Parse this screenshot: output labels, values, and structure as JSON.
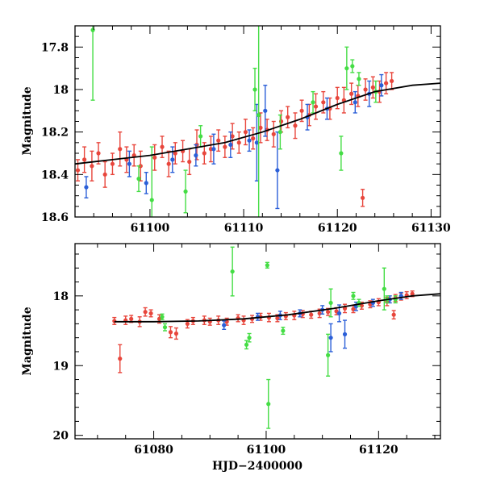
{
  "chart_data": [
    {
      "type": "scatter",
      "panel": "top",
      "title": "",
      "xlabel": "",
      "ylabel": "Magnitude",
      "xlim": [
        61092,
        61131
      ],
      "ylim": [
        18.6,
        17.7
      ],
      "y_inverted": true,
      "xticks": [
        61100,
        61110,
        61120,
        61130
      ],
      "xtick_labels": [
        "61100",
        "61110",
        "61120",
        "61130"
      ],
      "yticks": [
        17.8,
        18,
        18.2,
        18.4,
        18.6
      ],
      "ytick_labels": [
        "17.8",
        "18",
        "18.2",
        "18.4",
        "18.6"
      ],
      "model_curve": {
        "x": [
          61092,
          61096,
          61100,
          61104,
          61108,
          61112,
          61116,
          61120,
          61124,
          61128,
          61131
        ],
        "y": [
          18.35,
          18.33,
          18.31,
          18.28,
          18.25,
          18.2,
          18.14,
          18.07,
          18.01,
          17.98,
          17.97
        ]
      },
      "series": [
        {
          "name": "red",
          "color": "#e8463c",
          "x": [
            61092.3,
            61093.0,
            61093.8,
            61094.5,
            61095.2,
            61096.0,
            61096.8,
            61097.5,
            61098.3,
            61099.0,
            61100.5,
            61101.3,
            61102.0,
            61102.7,
            61103.5,
            61104.2,
            61105.0,
            61105.8,
            61106.5,
            61107.3,
            61108.0,
            61108.8,
            61109.5,
            61110.2,
            61111.0,
            61111.8,
            61112.5,
            61113.2,
            61114.0,
            61114.7,
            61115.5,
            61116.2,
            61117.0,
            61117.7,
            61118.5,
            61119.2,
            61120.0,
            61120.7,
            61121.5,
            61122.2,
            61122.7,
            61123.0,
            61123.8,
            61124.5,
            61125.2,
            61125.8
          ],
          "y": [
            18.38,
            18.33,
            18.36,
            18.3,
            18.4,
            18.35,
            18.28,
            18.33,
            18.31,
            18.36,
            18.32,
            18.27,
            18.35,
            18.3,
            18.29,
            18.34,
            18.26,
            18.3,
            18.28,
            18.24,
            18.27,
            18.22,
            18.25,
            18.2,
            18.23,
            18.18,
            18.19,
            18.21,
            18.15,
            18.13,
            18.17,
            18.1,
            18.12,
            18.08,
            18.06,
            18.09,
            18.04,
            18.05,
            18.02,
            18.03,
            18.51,
            18.0,
            17.99,
            18.01,
            17.97,
            17.96
          ],
          "err": [
            0.05,
            0.06,
            0.07,
            0.05,
            0.06,
            0.05,
            0.08,
            0.06,
            0.05,
            0.07,
            0.06,
            0.05,
            0.06,
            0.05,
            0.05,
            0.06,
            0.07,
            0.05,
            0.06,
            0.05,
            0.05,
            0.06,
            0.05,
            0.06,
            0.05,
            0.07,
            0.05,
            0.06,
            0.05,
            0.05,
            0.06,
            0.05,
            0.05,
            0.06,
            0.05,
            0.05,
            0.05,
            0.06,
            0.05,
            0.05,
            0.04,
            0.05,
            0.05,
            0.05,
            0.05,
            0.04
          ]
        },
        {
          "name": "blue",
          "color": "#2b5fd8",
          "x": [
            61093.2,
            61097.8,
            61099.6,
            61102.4,
            61104.9,
            61106.8,
            61108.6,
            61110.6,
            61111.4,
            61112.3,
            61113.6,
            61116.8,
            61118.9,
            61121.9,
            61123.4,
            61124.7
          ],
          "y": [
            18.46,
            18.35,
            18.44,
            18.33,
            18.31,
            18.28,
            18.26,
            18.24,
            18.25,
            18.1,
            18.38,
            18.13,
            18.09,
            18.06,
            18.02,
            17.98
          ],
          "err": [
            0.05,
            0.06,
            0.05,
            0.06,
            0.05,
            0.07,
            0.06,
            0.05,
            0.18,
            0.12,
            0.18,
            0.06,
            0.05,
            0.05,
            0.06,
            0.05
          ]
        },
        {
          "name": "green",
          "color": "#44dd44",
          "x": [
            61093.9,
            61098.8,
            61100.2,
            61103.8,
            61105.4,
            61111.2,
            61111.6,
            61113.9,
            61117.4,
            61120.4,
            61121.0,
            61121.6,
            61122.3,
            61124.1
          ],
          "y": [
            17.72,
            18.42,
            18.52,
            18.48,
            18.22,
            18.0,
            18.12,
            18.2,
            18.06,
            18.3,
            17.9,
            17.89,
            17.95,
            18.01
          ],
          "err": [
            0.33,
            0.06,
            0.25,
            0.1,
            0.05,
            0.1,
            0.55,
            0.08,
            0.05,
            0.08,
            0.1,
            0.03,
            0.03,
            0.05
          ]
        }
      ]
    },
    {
      "type": "scatter",
      "panel": "bottom",
      "title": "",
      "xlabel": "HJD−2400000",
      "ylabel": "Magnitude",
      "xlim": [
        61066,
        61131
      ],
      "ylim": [
        20.05,
        17.25
      ],
      "y_inverted": true,
      "xticks": [
        61080,
        61100,
        61120
      ],
      "xtick_labels": [
        "61080",
        "61100",
        "61120"
      ],
      "yticks": [
        18,
        19,
        20
      ],
      "ytick_labels": [
        "18",
        "19",
        "20"
      ],
      "model_curve": {
        "x": [
          61073,
          61080,
          61088,
          61096,
          61104,
          61112,
          61120,
          61126,
          61131
        ],
        "y": [
          18.37,
          18.37,
          18.36,
          18.33,
          18.27,
          18.18,
          18.07,
          18.0,
          17.97
        ]
      },
      "series": [
        {
          "name": "red",
          "color": "#e8463c",
          "x": [
            61073.0,
            61074.0,
            61075.0,
            61076.0,
            61077.5,
            61078.5,
            61079.5,
            61081.0,
            61083.0,
            61084.0,
            61086.0,
            61087.0,
            61089.0,
            61090.0,
            61091.5,
            61093.0,
            61095.0,
            61096.0,
            61097.5,
            61099.0,
            61100.5,
            61102.0,
            61103.5,
            61105.0,
            61106.5,
            61108.0,
            61109.5,
            61111.0,
            61112.5,
            61114.0,
            61115.5,
            61117.0,
            61118.5,
            61120.0,
            61121.5,
            61122.7,
            61123.0,
            61124.0,
            61125.0,
            61126.0
          ],
          "y": [
            18.36,
            18.9,
            18.35,
            18.33,
            18.37,
            18.23,
            18.25,
            18.33,
            18.52,
            18.54,
            18.4,
            18.36,
            18.35,
            18.37,
            18.35,
            18.37,
            18.32,
            18.35,
            18.33,
            18.3,
            18.31,
            18.32,
            18.29,
            18.28,
            18.26,
            18.27,
            18.25,
            18.23,
            18.22,
            18.18,
            18.19,
            18.14,
            18.12,
            18.09,
            18.08,
            18.27,
            18.03,
            18.01,
            17.99,
            17.97
          ],
          "err": [
            0.05,
            0.2,
            0.06,
            0.05,
            0.07,
            0.06,
            0.05,
            0.06,
            0.08,
            0.08,
            0.06,
            0.05,
            0.06,
            0.05,
            0.06,
            0.05,
            0.05,
            0.06,
            0.05,
            0.05,
            0.06,
            0.05,
            0.05,
            0.06,
            0.05,
            0.05,
            0.06,
            0.05,
            0.05,
            0.06,
            0.05,
            0.05,
            0.05,
            0.05,
            0.06,
            0.06,
            0.05,
            0.05,
            0.05,
            0.04
          ]
        },
        {
          "name": "blue",
          "color": "#2b5fd8",
          "x": [
            61092.5,
            61098.5,
            61102.5,
            61106.0,
            61110.0,
            61111.5,
            61113.0,
            61114.0,
            61116.0,
            61119.0,
            61122.0,
            61124.0
          ],
          "y": [
            18.42,
            18.3,
            18.28,
            18.25,
            18.2,
            18.6,
            18.25,
            18.55,
            18.15,
            18.1,
            18.05,
            18.0
          ],
          "err": [
            0.06,
            0.05,
            0.06,
            0.05,
            0.06,
            0.2,
            0.12,
            0.2,
            0.06,
            0.05,
            0.05,
            0.05
          ]
        },
        {
          "name": "green",
          "color": "#44dd44",
          "x": [
            61081.5,
            61082.0,
            61094.0,
            61096.5,
            61097.0,
            61100.2,
            61100.4,
            61103.0,
            61111.0,
            61111.5,
            61115.5,
            61116.5,
            61121.0,
            61121.5,
            61123.0
          ],
          "y": [
            18.3,
            18.45,
            17.65,
            18.7,
            18.6,
            17.56,
            19.55,
            18.5,
            18.85,
            18.1,
            18.0,
            18.1,
            17.9,
            18.05,
            18.05
          ],
          "err": [
            0.04,
            0.05,
            0.35,
            0.06,
            0.06,
            0.04,
            0.35,
            0.05,
            0.3,
            0.2,
            0.05,
            0.05,
            0.3,
            0.05,
            0.05
          ]
        }
      ]
    }
  ]
}
